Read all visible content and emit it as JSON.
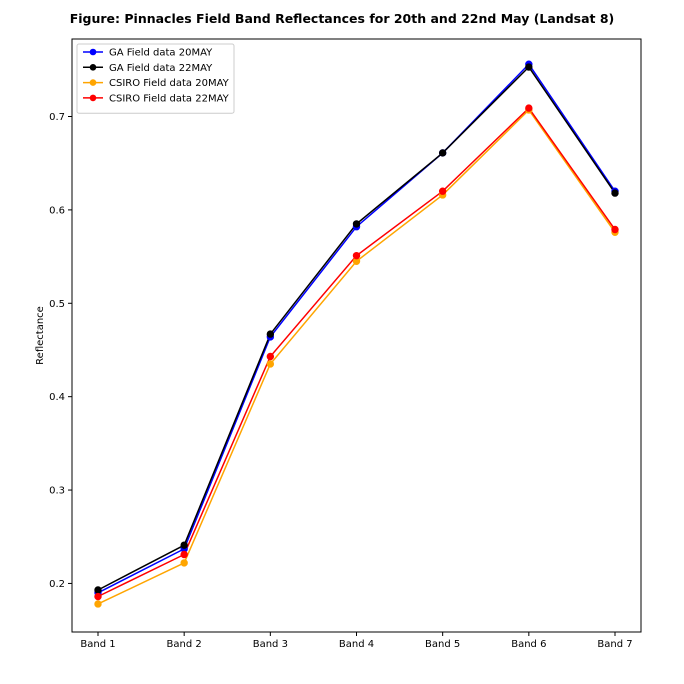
{
  "chart_data": {
    "type": "line",
    "title": "Figure: Pinnacles Field Band Reflectances for 20th and 22nd May (Landsat 8)",
    "xlabel": "",
    "ylabel": "Reflectance",
    "categories": [
      "Band 1",
      "Band 2",
      "Band 3",
      "Band 4",
      "Band 5",
      "Band 6",
      "Band 7"
    ],
    "ylim": [
      0.148,
      0.783
    ],
    "yticks": [
      0.2,
      0.3,
      0.4,
      0.5,
      0.6,
      0.7
    ],
    "ytick_labels": [
      "0.2",
      "0.3",
      "0.4",
      "0.5",
      "0.6",
      "0.7"
    ],
    "grid": false,
    "legend_position": "top-left",
    "series": [
      {
        "name": "GA Field data 20MAY",
        "color": "#0000ff",
        "values": [
          0.19,
          0.237,
          0.464,
          0.582,
          0.661,
          0.756,
          0.62
        ]
      },
      {
        "name": "GA Field data 22MAY",
        "color": "#000000",
        "values": [
          0.193,
          0.241,
          0.467,
          0.585,
          0.661,
          0.753,
          0.618
        ]
      },
      {
        "name": "CSIRO Field data 20MAY",
        "color": "#ffa500",
        "values": [
          0.178,
          0.222,
          0.435,
          0.545,
          0.616,
          0.707,
          0.576
        ]
      },
      {
        "name": "CSIRO Field data 22MAY",
        "color": "#ff0000",
        "values": [
          0.186,
          0.231,
          0.443,
          0.551,
          0.62,
          0.709,
          0.579
        ]
      }
    ]
  }
}
